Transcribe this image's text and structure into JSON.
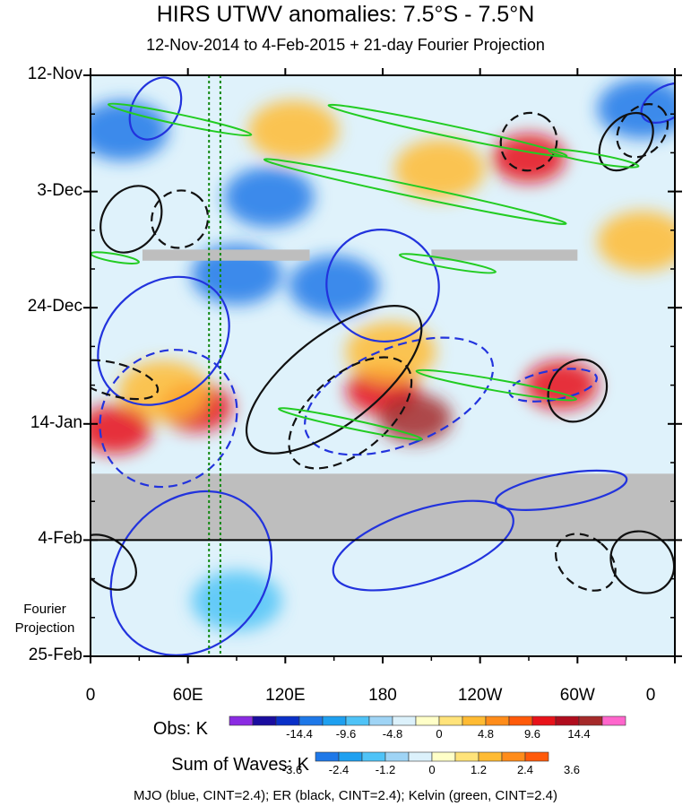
{
  "chart_data": {
    "type": "heatmap",
    "title": "HIRS UTWV anomalies: 7.5°S - 7.5°N",
    "subtitle": "12-Nov-2014 to 4-Feb-2015 + 21-day Fourier Projection",
    "x_axis": {
      "quantity": "longitude",
      "range_deg_east": [
        0,
        360
      ],
      "ticks": [
        {
          "lon": 0,
          "label": "0"
        },
        {
          "lon": 60,
          "label": "60E"
        },
        {
          "lon": 120,
          "label": "120E"
        },
        {
          "lon": 180,
          "label": "180"
        },
        {
          "lon": 240,
          "label": "120W"
        },
        {
          "lon": 300,
          "label": "60W"
        },
        {
          "lon": 360,
          "label": "0"
        }
      ]
    },
    "y_axis": {
      "quantity": "time (days since 12-Nov-2014)",
      "range_days": [
        0,
        105
      ],
      "ticks": [
        {
          "day": 0,
          "label": "12-Nov"
        },
        {
          "day": 21,
          "label": "3-Dec"
        },
        {
          "day": 42,
          "label": "24-Dec"
        },
        {
          "day": 63,
          "label": "14-Jan"
        },
        {
          "day": 84,
          "label": "4-Feb"
        },
        {
          "day": 105,
          "label": "25-Feb"
        }
      ]
    },
    "observation_end_day": 84,
    "fourier_projection_label": "Fourier Projection",
    "missing_data": [
      {
        "day_start": 72,
        "day_end": 84,
        "lon_start": 0,
        "lon_end": 360
      },
      {
        "day_start": 31.5,
        "day_end": 33.5,
        "lon_start": 32,
        "lon_end": 135
      },
      {
        "day_start": 31.5,
        "day_end": 33.5,
        "lon_start": 210,
        "lon_end": 300
      }
    ],
    "reference_longitudes": [
      73,
      80
    ],
    "anomaly_features": [
      {
        "lon": 65,
        "day": 60,
        "value": 9.6,
        "kind": "positive"
      },
      {
        "lon": 45,
        "day": 57,
        "value": 4.8,
        "kind": "positive"
      },
      {
        "lon": 180,
        "day": 57,
        "value": 9.6,
        "kind": "positive"
      },
      {
        "lon": 200,
        "day": 62,
        "value": 14.4,
        "kind": "positive"
      },
      {
        "lon": 185,
        "day": 50,
        "value": 4.8,
        "kind": "positive"
      },
      {
        "lon": 290,
        "day": 56,
        "value": 9.6,
        "kind": "positive"
      },
      {
        "lon": 215,
        "day": 17,
        "value": 4.8,
        "kind": "positive"
      },
      {
        "lon": 270,
        "day": 15,
        "value": 9.6,
        "kind": "positive"
      },
      {
        "lon": 15,
        "day": 64,
        "value": 9.6,
        "kind": "positive"
      },
      {
        "lon": 340,
        "day": 30,
        "value": 4.8,
        "kind": "positive"
      },
      {
        "lon": 125,
        "day": 10,
        "value": 4.8,
        "kind": "positive"
      },
      {
        "lon": 90,
        "day": 36,
        "value": -4.8,
        "kind": "negative"
      },
      {
        "lon": 90,
        "day": 95,
        "value": -2.4,
        "kind": "negative"
      },
      {
        "lon": 110,
        "day": 22,
        "value": -4.8,
        "kind": "negative"
      },
      {
        "lon": 20,
        "day": 10,
        "value": -4.8,
        "kind": "negative"
      },
      {
        "lon": 340,
        "day": 6,
        "value": -4.8,
        "kind": "negative"
      },
      {
        "lon": 150,
        "day": 38,
        "value": -4.8,
        "kind": "negative"
      }
    ],
    "wave_contours": [
      {
        "wave": "MJO",
        "color": "blue",
        "sign": "positive",
        "lon": 45,
        "day": 48,
        "lon_halfwidth": 35,
        "day_halfwidth": 13,
        "tilt_deg": 48
      },
      {
        "wave": "MJO",
        "color": "blue",
        "sign": "negative",
        "lon": 48,
        "day": 62,
        "lon_halfwidth": 40,
        "day_halfwidth": 13,
        "tilt_deg": 45
      },
      {
        "wave": "MJO",
        "color": "blue",
        "sign": "positive",
        "lon": 62,
        "day": 90,
        "lon_halfwidth": 45,
        "day_halfwidth": 16,
        "tilt_deg": 42
      },
      {
        "wave": "MJO",
        "color": "blue",
        "sign": "positive",
        "lon": 180,
        "day": 38,
        "lon_halfwidth": 35,
        "day_halfwidth": 10,
        "tilt_deg": 40
      },
      {
        "wave": "MJO",
        "color": "blue",
        "sign": "positive",
        "lon": 205,
        "day": 85,
        "lon_halfwidth": 22,
        "day_halfwidth": 17,
        "tilt_deg": 72
      },
      {
        "wave": "MJO",
        "color": "blue",
        "sign": "negative",
        "lon": 190,
        "day": 58,
        "lon_halfwidth": 30,
        "day_halfwidth": 18,
        "tilt_deg": 68
      },
      {
        "wave": "MJO",
        "color": "blue",
        "sign": "positive",
        "lon": 290,
        "day": 75,
        "lon_halfwidth": 10,
        "day_halfwidth": 12,
        "tilt_deg": 80
      },
      {
        "wave": "MJO",
        "color": "blue",
        "sign": "negative",
        "lon": 285,
        "day": 56,
        "lon_halfwidth": 9,
        "day_halfwidth": 8,
        "tilt_deg": 80
      },
      {
        "wave": "MJO",
        "color": "blue",
        "sign": "positive",
        "lon": 40,
        "day": 6,
        "lon_halfwidth": 14,
        "day_halfwidth": 6,
        "tilt_deg": 30
      },
      {
        "wave": "MJO",
        "color": "blue",
        "sign": "positive",
        "lon": 355,
        "day": 5,
        "lon_halfwidth": 10,
        "day_halfwidth": 5,
        "tilt_deg": 60
      },
      {
        "wave": "ER",
        "color": "black",
        "sign": "positive",
        "lon": 150,
        "day": 55,
        "lon_halfwidth": 65,
        "day_halfwidth": 8,
        "tilt_deg": -38
      },
      {
        "wave": "ER",
        "color": "black",
        "sign": "negative",
        "lon": 160,
        "day": 61,
        "lon_halfwidth": 45,
        "day_halfwidth": 7,
        "tilt_deg": -40
      },
      {
        "wave": "ER",
        "color": "black",
        "sign": "positive",
        "lon": 25,
        "day": 26,
        "lon_halfwidth": 22,
        "day_halfwidth": 5,
        "tilt_deg": -55
      },
      {
        "wave": "ER",
        "color": "black",
        "sign": "negative",
        "lon": 55,
        "day": 26,
        "lon_halfwidth": 18,
        "day_halfwidth": 5,
        "tilt_deg": -55
      },
      {
        "wave": "ER",
        "color": "black",
        "sign": "positive",
        "lon": 300,
        "day": 57,
        "lon_halfwidth": 20,
        "day_halfwidth": 5,
        "tilt_deg": -55
      },
      {
        "wave": "ER",
        "color": "black",
        "sign": "negative",
        "lon": 340,
        "day": 10,
        "lon_halfwidth": 18,
        "day_halfwidth": 4,
        "tilt_deg": -50
      },
      {
        "wave": "ER",
        "color": "black",
        "sign": "positive",
        "lon": 330,
        "day": 12,
        "lon_halfwidth": 20,
        "day_halfwidth": 4,
        "tilt_deg": -50
      },
      {
        "wave": "ER",
        "color": "black",
        "sign": "negative",
        "lon": 270,
        "day": 12,
        "lon_halfwidth": 18,
        "day_halfwidth": 5,
        "tilt_deg": -60
      },
      {
        "wave": "ER",
        "color": "black",
        "sign": "positive",
        "lon": 340,
        "day": 88,
        "lon_halfwidth": 18,
        "day_halfwidth": 6,
        "tilt_deg": -50
      },
      {
        "wave": "ER",
        "color": "black",
        "sign": "negative",
        "lon": 305,
        "day": 88,
        "lon_halfwidth": 15,
        "day_halfwidth": 6,
        "tilt_deg": -50
      },
      {
        "wave": "ER",
        "color": "black",
        "sign": "positive",
        "lon": 10,
        "day": 88,
        "lon_halfwidth": 14,
        "day_halfwidth": 6,
        "tilt_deg": -50
      },
      {
        "wave": "ER",
        "color": "black",
        "sign": "negative",
        "lon": 15,
        "day": 55,
        "lon_halfwidth": 10,
        "day_halfwidth": 8,
        "tilt_deg": -75
      },
      {
        "wave": "Kelvin",
        "color": "green",
        "sign": "positive",
        "lon": 55,
        "day": 8,
        "lon_halfwidth": 45,
        "day_halfwidth": 0.9,
        "tilt_deg": 12
      },
      {
        "wave": "Kelvin",
        "color": "green",
        "sign": "positive",
        "lon": 220,
        "day": 10,
        "lon_halfwidth": 75,
        "day_halfwidth": 1.0,
        "tilt_deg": 12
      },
      {
        "wave": "Kelvin",
        "color": "green",
        "sign": "positive",
        "lon": 200,
        "day": 21,
        "lon_halfwidth": 95,
        "day_halfwidth": 1.0,
        "tilt_deg": 12
      },
      {
        "wave": "Kelvin",
        "color": "green",
        "sign": "positive",
        "lon": 310,
        "day": 15,
        "lon_halfwidth": 28,
        "day_halfwidth": 0.8,
        "tilt_deg": 10
      },
      {
        "wave": "Kelvin",
        "color": "green",
        "sign": "positive",
        "lon": 250,
        "day": 56,
        "lon_halfwidth": 50,
        "day_halfwidth": 1.0,
        "tilt_deg": 10
      },
      {
        "wave": "Kelvin",
        "color": "green",
        "sign": "positive",
        "lon": 160,
        "day": 63,
        "lon_halfwidth": 45,
        "day_halfwidth": 0.8,
        "tilt_deg": 12
      },
      {
        "wave": "Kelvin",
        "color": "green",
        "sign": "positive",
        "lon": 220,
        "day": 34,
        "lon_halfwidth": 30,
        "day_halfwidth": 0.8,
        "tilt_deg": 10
      },
      {
        "wave": "Kelvin",
        "color": "green",
        "sign": "positive",
        "lon": 15,
        "day": 33,
        "lon_halfwidth": 15,
        "day_halfwidth": 0.7,
        "tilt_deg": 10
      }
    ],
    "colorbars": {
      "obs": {
        "title": "Obs: K",
        "labels": [
          "-14.4",
          "-9.6",
          "-4.8",
          "0",
          "4.8",
          "9.6",
          "14.4"
        ],
        "colors": [
          "#8a2be2",
          "#1a0d9f",
          "#0a30c8",
          "#1e78e8",
          "#1ea0f0",
          "#4fc3f7",
          "#9fd4f5",
          "#dcf1fb",
          "#ffffc8",
          "#ffe37a",
          "#ffbb33",
          "#ff8c1a",
          "#ff5a0a",
          "#e8131a",
          "#b00d1e",
          "#a52a2a",
          "#ff66cc"
        ]
      },
      "waves": {
        "title": "Sum of Waves: K",
        "labels": [
          "-3.6",
          "-2.4",
          "-1.2",
          "0",
          "1.2",
          "2.4",
          "3.6"
        ],
        "colors": [
          "#1e78e8",
          "#1ea0f0",
          "#4fc3f7",
          "#9fd4f5",
          "#dcf1fb",
          "#ffffc8",
          "#ffe37a",
          "#ffbb33",
          "#ff8c1a",
          "#ff5a0a"
        ]
      }
    },
    "legend_note": "MJO (blue, CINT=2.4); ER (black, CINT=2.4); Kelvin (green, CINT=2.4)"
  }
}
